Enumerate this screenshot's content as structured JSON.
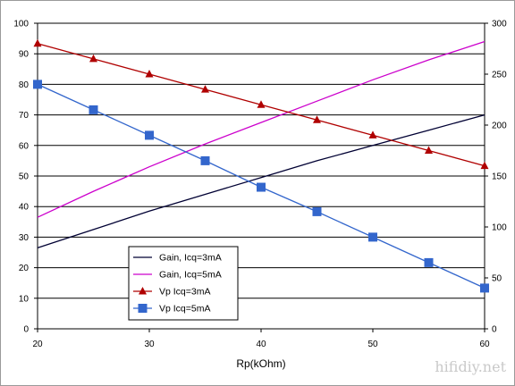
{
  "chart_data": {
    "type": "line",
    "xlabel": "Rp(kOhm)",
    "x_ticks": [
      20,
      30,
      40,
      50,
      60
    ],
    "xlim": [
      20,
      60
    ],
    "ylim_left": [
      0,
      100
    ],
    "y_ticks_left": [
      0,
      10,
      20,
      30,
      40,
      50,
      60,
      70,
      80,
      90,
      100
    ],
    "ylim_right": [
      0,
      300
    ],
    "y_ticks_right": [
      0,
      50,
      100,
      150,
      200,
      250,
      300
    ],
    "grid": "horizontal",
    "legend_position": "lower-left",
    "series": [
      {
        "name": "Gain, Icq=3mA",
        "axis": "left",
        "marker": "none",
        "color": "#000033",
        "x": [
          20,
          25,
          30,
          35,
          40,
          45,
          50,
          55,
          60
        ],
        "y": [
          26.5,
          32.5,
          38.5,
          44,
          49.5,
          55,
          60,
          65,
          70
        ]
      },
      {
        "name": "Gain, Icq=5mA",
        "axis": "left",
        "marker": "none",
        "color": "#cc00cc",
        "x": [
          20,
          25,
          30,
          35,
          40,
          45,
          50,
          55,
          60
        ],
        "y": [
          36.5,
          45,
          53,
          60.5,
          67.5,
          74.5,
          81.5,
          88,
          94
        ]
      },
      {
        "name": "Vp Icq=3mA",
        "axis": "right",
        "marker": "triangle",
        "color": "#b00000",
        "x": [
          20,
          25,
          30,
          35,
          40,
          45,
          50,
          55,
          60
        ],
        "y": [
          280,
          265,
          250,
          235,
          220,
          205,
          190,
          175,
          160
        ]
      },
      {
        "name": "Vp Icq=5mA",
        "axis": "right",
        "marker": "square",
        "color": "#3366cc",
        "x": [
          20,
          25,
          30,
          35,
          40,
          45,
          50,
          55,
          60
        ],
        "y": [
          240,
          215,
          190,
          165,
          139,
          115,
          90,
          65,
          40
        ]
      }
    ]
  },
  "watermark": "hifidiy.net"
}
